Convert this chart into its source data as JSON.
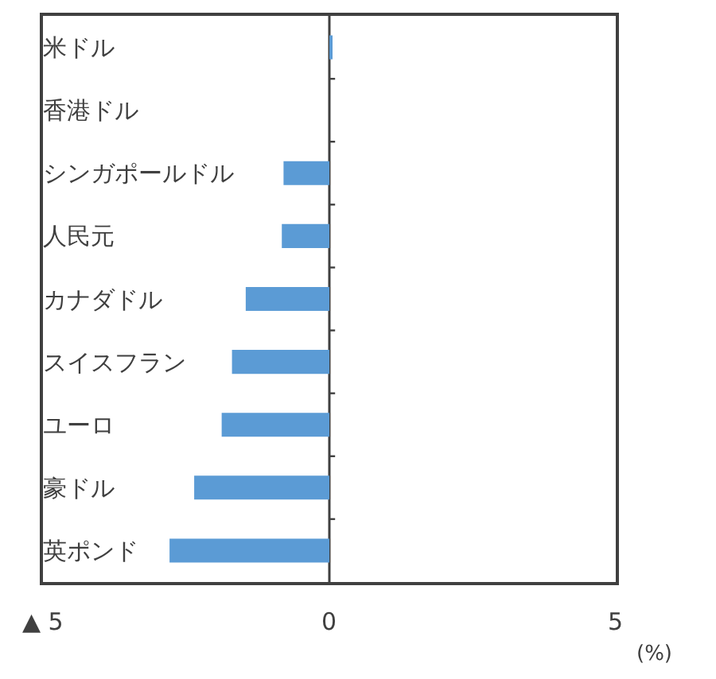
{
  "chart_data": {
    "type": "bar",
    "orientation": "horizontal",
    "categories": [
      "米ドル",
      "香港ドル",
      "シンガポールドル",
      "人民元",
      "カナダドル",
      "スイスフラン",
      "ユーロ",
      "豪ドル",
      "英ポンド"
    ],
    "values": [
      0.05,
      0,
      -0.8,
      -0.83,
      -1.46,
      -1.7,
      -1.88,
      -2.36,
      -2.79
    ],
    "color": "#5b9bd5",
    "xlim": [
      -5,
      5
    ],
    "xticks": [
      {
        "value": -5,
        "label": "▲ 5"
      },
      0,
      5
    ],
    "xlabel": "(%)"
  }
}
